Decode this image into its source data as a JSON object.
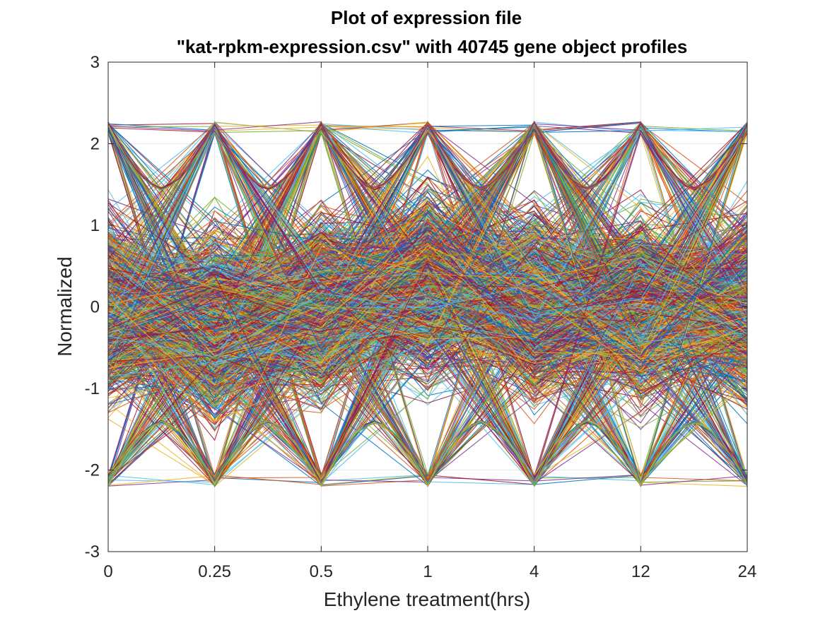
{
  "chart_data": {
    "type": "line",
    "title_line1": "Plot of expression file",
    "title_line2": "\"kat-rpkm-expression.csv\" with 40745 gene object profiles",
    "xlabel": "Ethylene treatment(hrs)",
    "ylabel": "Normalized",
    "categories": [
      "0",
      "0.25",
      "0.5",
      "1",
      "4",
      "12",
      "24"
    ],
    "ylim": [
      -3,
      3
    ],
    "yticks": [
      "-3",
      "-2",
      "-1",
      "0",
      "1",
      "2",
      "3"
    ],
    "grid": true,
    "legend": "none",
    "profile_count": 40745,
    "envelope": {
      "upper_peak": 2.27,
      "upper_trough": 1.47,
      "lower_peak": -2.2,
      "lower_trough": -1.43
    },
    "line_colors": [
      "#0072BD",
      "#D95319",
      "#EDB120",
      "#7E2F8E",
      "#77AC30",
      "#4DBEEE",
      "#A2142F"
    ]
  }
}
